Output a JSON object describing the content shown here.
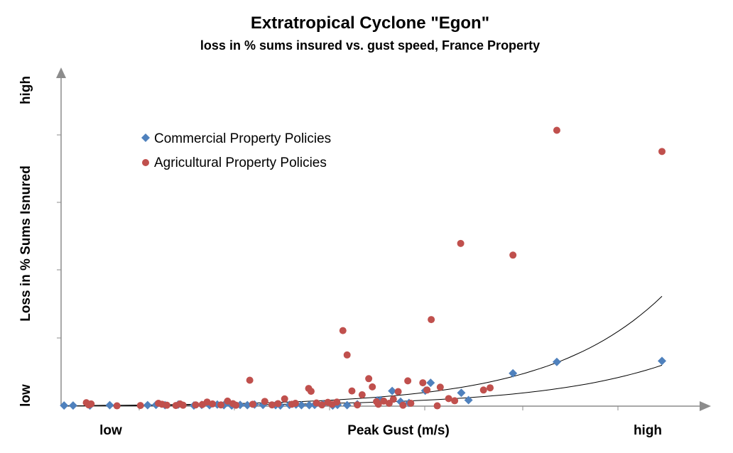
{
  "chart_data": {
    "type": "scatter",
    "title": "Extratropical Cyclone \"Egon\"",
    "subtitle": "loss in % sums insured vs. gust speed, France Property",
    "xlabel": "Peak Gust (m/s)",
    "ylabel": "Loss in % Sums Isnured",
    "x_tick_low": "low",
    "x_tick_high": "high",
    "y_tick_low": "low",
    "y_tick_high": "high",
    "xlim": [
      0,
      100
    ],
    "ylim": [
      0,
      100
    ],
    "legend_position": "top-left",
    "grid": false,
    "series": [
      {
        "name": "Commercial Property Policies",
        "marker": "diamond",
        "color": "#4f81bd",
        "points": [
          [
            0.5,
            0.2
          ],
          [
            2.0,
            0.2
          ],
          [
            4.8,
            0.2
          ],
          [
            8.1,
            0.3
          ],
          [
            14.4,
            0.3
          ],
          [
            15.8,
            0.4
          ],
          [
            17.3,
            0.3
          ],
          [
            19.5,
            0.5
          ],
          [
            22.1,
            0.2
          ],
          [
            23.4,
            0.4
          ],
          [
            24.7,
            0.3
          ],
          [
            26.0,
            0.5
          ],
          [
            27.1,
            0.3
          ],
          [
            28.4,
            0.2
          ],
          [
            29.8,
            0.4
          ],
          [
            31.0,
            0.3
          ],
          [
            32.2,
            0.5
          ],
          [
            33.6,
            0.4
          ],
          [
            35.7,
            0.3
          ],
          [
            36.5,
            0.2
          ],
          [
            38.0,
            0.4
          ],
          [
            39.1,
            0.5
          ],
          [
            40.0,
            0.3
          ],
          [
            41.3,
            0.3
          ],
          [
            42.2,
            0.4
          ],
          [
            43.6,
            0.6
          ],
          [
            45.2,
            0.2
          ],
          [
            46.0,
            0.4
          ],
          [
            47.6,
            0.3
          ],
          [
            49.3,
            0.6
          ],
          [
            52.6,
            1.8
          ],
          [
            53.2,
            1.9
          ],
          [
            55.1,
            4.8
          ],
          [
            56.5,
            1.4
          ],
          [
            57.9,
            1.0
          ],
          [
            60.6,
            4.9
          ],
          [
            61.5,
            7.4
          ],
          [
            66.6,
            4.2
          ],
          [
            67.8,
            1.9
          ],
          [
            75.2,
            10.4
          ],
          [
            82.5,
            14.0
          ],
          [
            100.0,
            14.3
          ]
        ]
      },
      {
        "name": "Agricultural Property Policies",
        "marker": "circle",
        "color": "#c0504d",
        "points": [
          [
            4.2,
            1.1
          ],
          [
            4.6,
            0.4
          ],
          [
            5.0,
            0.7
          ],
          [
            9.3,
            0.1
          ],
          [
            13.2,
            0.2
          ],
          [
            16.2,
            0.9
          ],
          [
            16.8,
            0.6
          ],
          [
            17.6,
            0.3
          ],
          [
            19.1,
            0.2
          ],
          [
            19.8,
            0.7
          ],
          [
            20.3,
            0.3
          ],
          [
            22.4,
            0.4
          ],
          [
            23.5,
            0.5
          ],
          [
            24.3,
            1.3
          ],
          [
            25.2,
            0.7
          ],
          [
            26.6,
            0.4
          ],
          [
            27.7,
            1.6
          ],
          [
            28.6,
            0.8
          ],
          [
            29.1,
            0.3
          ],
          [
            31.4,
            8.2
          ],
          [
            31.9,
            0.6
          ],
          [
            33.9,
            1.5
          ],
          [
            35.1,
            0.4
          ],
          [
            36.1,
            0.8
          ],
          [
            37.2,
            2.3
          ],
          [
            38.4,
            0.6
          ],
          [
            39.0,
            0.9
          ],
          [
            41.2,
            5.6
          ],
          [
            41.6,
            4.7
          ],
          [
            42.5,
            1.0
          ],
          [
            43.4,
            0.4
          ],
          [
            44.4,
            1.2
          ],
          [
            45.1,
            0.6
          ],
          [
            45.9,
            1.3
          ],
          [
            46.9,
            23.9
          ],
          [
            47.6,
            16.2
          ],
          [
            48.4,
            4.8
          ],
          [
            49.3,
            0.4
          ],
          [
            50.1,
            3.6
          ],
          [
            51.2,
            8.7
          ],
          [
            51.8,
            6.1
          ],
          [
            52.5,
            1.4
          ],
          [
            52.8,
            0.6
          ],
          [
            53.7,
            1.6
          ],
          [
            54.6,
            0.9
          ],
          [
            55.3,
            2.2
          ],
          [
            56.1,
            4.6
          ],
          [
            56.9,
            0.3
          ],
          [
            57.7,
            8.0
          ],
          [
            58.2,
            0.9
          ],
          [
            60.2,
            7.4
          ],
          [
            60.9,
            5.1
          ],
          [
            61.6,
            27.4
          ],
          [
            62.6,
            0.1
          ],
          [
            63.1,
            6.0
          ],
          [
            64.5,
            2.4
          ],
          [
            65.5,
            1.7
          ],
          [
            66.5,
            51.5
          ],
          [
            70.3,
            5.1
          ],
          [
            71.4,
            5.8
          ],
          [
            75.2,
            47.8
          ],
          [
            82.5,
            87.3
          ],
          [
            100.0,
            80.6
          ]
        ]
      }
    ],
    "trendlines": [
      {
        "name": "",
        "type": "exponential",
        "color": "#000000"
      },
      {
        "name": "",
        "type": "exponential",
        "color": "#000000"
      }
    ]
  }
}
